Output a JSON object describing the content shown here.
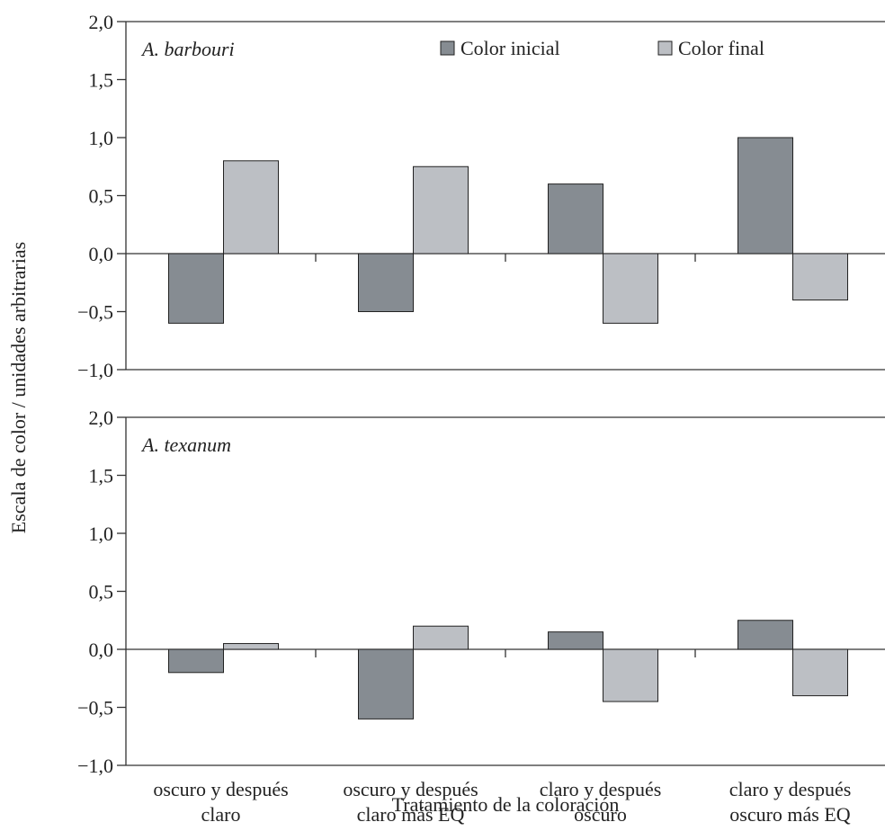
{
  "colors": {
    "Color inicial": "#868c92",
    "Color final": "#bcbfc4",
    "axis": "#333333"
  },
  "chart_data": {
    "type": "bar",
    "ylabel": "Escala de color / unidades arbitrarias",
    "xlabel": "Tratamiento de la coloración",
    "categories": [
      [
        "oscuro y después",
        "claro"
      ],
      [
        "oscuro y después",
        "claro más EQ"
      ],
      [
        "claro y después",
        "oscuro"
      ],
      [
        "claro y después",
        "oscuro más EQ"
      ]
    ],
    "legend": [
      "Color inicial",
      "Color final"
    ],
    "legend_position": "top-right",
    "ylim": [
      -1.0,
      2.0
    ],
    "yticks": [
      "2,0",
      "1,5",
      "1,0",
      "0,5",
      "0,0",
      "−0,5",
      "−1,0"
    ],
    "ytick_values": [
      2.0,
      1.5,
      1.0,
      0.5,
      0.0,
      -0.5,
      -1.0
    ],
    "panels": [
      {
        "title": "A. barbouri",
        "series": [
          {
            "name": "Color inicial",
            "values": [
              -0.6,
              -0.5,
              0.6,
              1.0
            ]
          },
          {
            "name": "Color final",
            "values": [
              0.8,
              0.75,
              -0.6,
              -0.4
            ]
          }
        ]
      },
      {
        "title": "A. texanum",
        "series": [
          {
            "name": "Color inicial",
            "values": [
              -0.2,
              -0.6,
              0.15,
              0.25
            ]
          },
          {
            "name": "Color final",
            "values": [
              0.05,
              0.2,
              -0.45,
              -0.4
            ]
          }
        ]
      }
    ]
  }
}
